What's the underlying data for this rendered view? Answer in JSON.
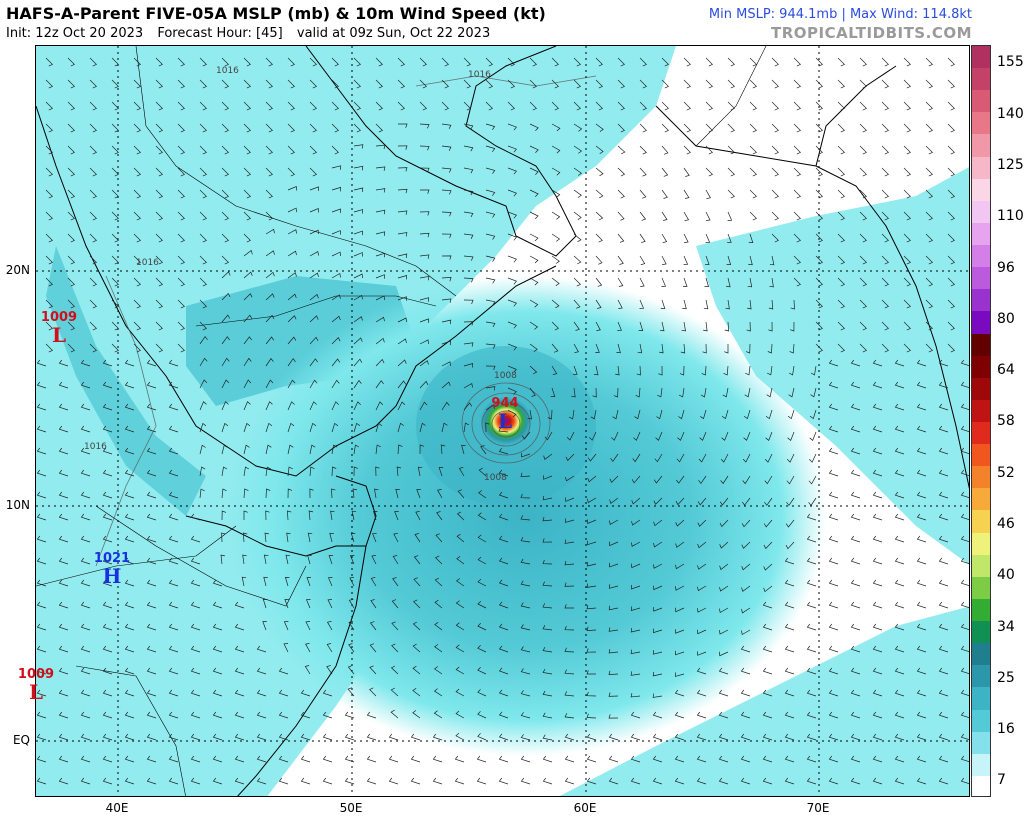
{
  "header": {
    "title": "HAFS-A-Parent FIVE-05A MSLP (mb) & 10m Wind Speed (kt)",
    "init": "Init: 12z Oct 20 2023",
    "forecast_hour": "Forecast Hour: [45]",
    "valid": "valid at 09z Sun, Oct 22 2023",
    "stats": "Min MSLP: 944.1mb | Max Wind: 114.8kt",
    "brand": "TROPICALTIDBITS.COM"
  },
  "map": {
    "lat_labels": [
      "20N",
      "10N",
      "EQ"
    ],
    "lon_labels": [
      "40E",
      "50E",
      "60E",
      "70E"
    ],
    "isobar_labels": [
      "1016",
      "1016",
      "1016",
      "1016",
      "1008",
      "1008"
    ],
    "pressure_centers": [
      {
        "value": "1009",
        "letter": "L",
        "type": "low"
      },
      {
        "value": "1021",
        "letter": "H",
        "type": "high"
      },
      {
        "value": "1009",
        "letter": "L",
        "type": "low"
      },
      {
        "value": "944",
        "letter": "L",
        "type": "cyclone"
      }
    ]
  },
  "colorbar": {
    "labels": [
      "155",
      "140",
      "125",
      "110",
      "96",
      "80",
      "64",
      "58",
      "52",
      "46",
      "40",
      "34",
      "25",
      "16",
      "7"
    ],
    "colors": [
      "#b03060",
      "#c44268",
      "#d85a74",
      "#e87888",
      "#f098a8",
      "#f6b8c8",
      "#fbd6e6",
      "#f2c6f2",
      "#e6a4ee",
      "#d47ee8",
      "#bc5ade",
      "#9a32d0",
      "#7a0ac0",
      "#620000",
      "#7e0000",
      "#9e0808",
      "#c01414",
      "#e02a1e",
      "#f0561e",
      "#f4822a",
      "#f6aa3a",
      "#f6d250",
      "#eef27a",
      "#c0e66a",
      "#7ccc46",
      "#32ac32",
      "#109052",
      "#207e8e",
      "#2c96aa",
      "#3cb4c6",
      "#54cad6",
      "#84e0ea",
      "#c6f4f8",
      "#ffffff"
    ],
    "colors_note": ""
  },
  "colors": {
    "wind_light": "#7fe8ec",
    "wind_mid": "#4cc6d2",
    "wind_dark": "#2a98ae",
    "ocean": "#ffffff",
    "coast": "#000000"
  }
}
